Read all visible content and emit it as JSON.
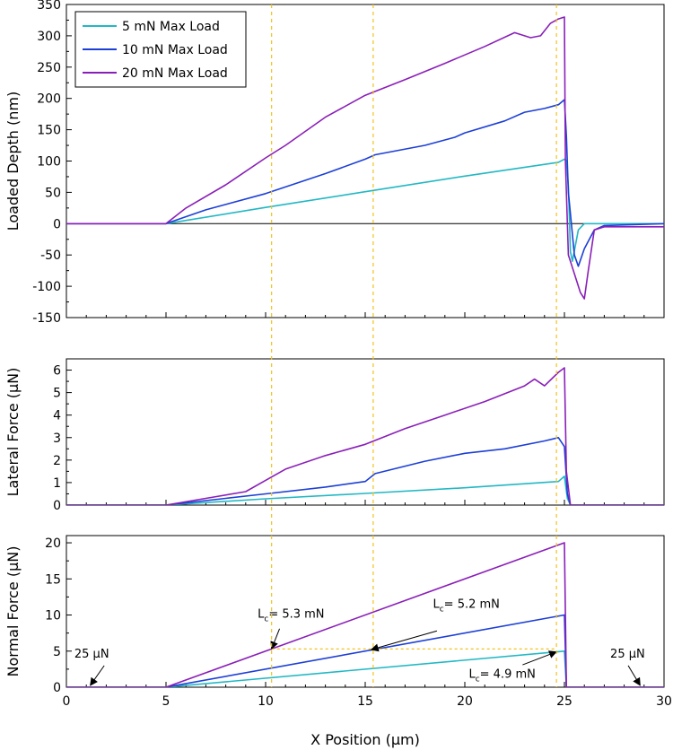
{
  "chart_data": [
    {
      "type": "line",
      "id": "depth",
      "ylabel": "Loaded Depth (nm)",
      "xlim": [
        0,
        30
      ],
      "ylim": [
        -150,
        350
      ],
      "yticks": [
        -150,
        -100,
        -50,
        0,
        50,
        100,
        150,
        200,
        250,
        300,
        350
      ],
      "zero_line": true,
      "legend": {
        "placement": "top-left",
        "entries": [
          "5 mN Max Load",
          "10 mN Max Load",
          "20 mN Max Load"
        ]
      },
      "series": [
        {
          "name": "5 mN Max Load",
          "color": "#22b8c4",
          "x": [
            -1,
            5,
            10,
            15,
            20,
            24.7,
            25.0,
            25.1,
            25.2,
            25.3,
            25.4,
            25.7,
            26,
            30
          ],
          "y": [
            0,
            0,
            26,
            51,
            76,
            98,
            103,
            101,
            60,
            -45,
            -60,
            -10,
            0,
            0
          ]
        },
        {
          "name": "10 mN Max Load",
          "color": "#1c3fd6",
          "x": [
            -1,
            5,
            7,
            10,
            13,
            15,
            15.5,
            18,
            19.5,
            20,
            22,
            23,
            24,
            24.7,
            25.0,
            25.1,
            25.2,
            25.5,
            25.7,
            26.0,
            26.5,
            27,
            30
          ],
          "y": [
            0,
            0,
            22,
            48,
            80,
            103,
            110,
            125,
            138,
            145,
            164,
            178,
            184,
            190,
            198,
            140,
            50,
            -50,
            -68,
            -40,
            -10,
            -3,
            0
          ]
        },
        {
          "name": "20 mN Max Load",
          "color": "#8a1fb8",
          "x": [
            -1,
            5,
            6,
            8,
            10,
            11,
            13,
            15,
            17,
            19,
            21,
            22.5,
            23.3,
            23.8,
            24.3,
            24.7,
            25.0,
            25.05,
            25.2,
            25.5,
            25.8,
            26.0,
            26.2,
            26.5,
            27,
            30
          ],
          "y": [
            0,
            0,
            25,
            62,
            105,
            125,
            170,
            205,
            230,
            256,
            283,
            305,
            297,
            300,
            320,
            327,
            330,
            100,
            -50,
            -80,
            -110,
            -120,
            -75,
            -10,
            -5,
            -5
          ]
        }
      ]
    },
    {
      "type": "line",
      "id": "lateral",
      "ylabel": "Lateral Force (µN)",
      "xlim": [
        0,
        30
      ],
      "ylim": [
        0,
        6.5
      ],
      "yticks": [
        0,
        1,
        2,
        3,
        4,
        5,
        6
      ],
      "series": [
        {
          "name": "5 mN Max Load",
          "color": "#22b8c4",
          "x": [
            -1,
            5,
            10,
            15,
            20,
            24.7,
            25.0,
            25.15,
            25.3,
            30
          ],
          "y": [
            0,
            0,
            0.28,
            0.52,
            0.77,
            1.05,
            1.28,
            0.3,
            0,
            0
          ]
        },
        {
          "name": "10 mN Max Load",
          "color": "#1c3fd6",
          "x": [
            -1,
            5,
            8,
            10,
            13,
            15,
            15.5,
            18,
            20,
            22,
            24,
            24.7,
            25.0,
            25.15,
            25.3,
            30
          ],
          "y": [
            0,
            0,
            0.3,
            0.5,
            0.8,
            1.05,
            1.4,
            1.95,
            2.3,
            2.5,
            2.85,
            3.0,
            2.6,
            0.5,
            0,
            0
          ]
        },
        {
          "name": "20 mN Max Load",
          "color": "#8a1fb8",
          "x": [
            -1,
            5,
            7,
            9,
            10,
            11,
            13,
            15,
            17,
            19,
            21,
            23,
            23.5,
            24,
            24.7,
            25.0,
            25.1,
            25.3,
            30
          ],
          "y": [
            0,
            0,
            0.3,
            0.6,
            1.1,
            1.6,
            2.2,
            2.7,
            3.4,
            4.0,
            4.6,
            5.3,
            5.6,
            5.3,
            5.9,
            6.1,
            1.5,
            0,
            0
          ]
        }
      ]
    },
    {
      "type": "line",
      "id": "normal",
      "ylabel": "Normal Force (µN)",
      "xlabel": "X Position (µm)",
      "xlim": [
        0,
        30
      ],
      "xticks": [
        0,
        5,
        10,
        15,
        20,
        25,
        30
      ],
      "ylim": [
        0,
        21
      ],
      "yticks": [
        0,
        5,
        10,
        15,
        20
      ],
      "series": [
        {
          "name": "5 mN Max Load",
          "color": "#22b8c4",
          "x": [
            -1,
            5,
            25,
            25.1,
            30
          ],
          "y": [
            0,
            0,
            5,
            0,
            0
          ]
        },
        {
          "name": "10 mN Max Load",
          "color": "#1c3fd6",
          "x": [
            -1,
            5,
            25,
            25.1,
            30
          ],
          "y": [
            0,
            0,
            10,
            0,
            0
          ]
        },
        {
          "name": "20 mN Max Load",
          "color": "#8a1fb8",
          "x": [
            -1,
            5,
            25,
            25.1,
            30
          ],
          "y": [
            0,
            0,
            20,
            0,
            0
          ]
        }
      ],
      "annotations": [
        {
          "sub": "c",
          "text": "= 5.3 mN",
          "tip": [
            10.3,
            5.3
          ],
          "tail": [
            10.7,
            8.1
          ],
          "lx": 9.6,
          "ly": 9.6
        },
        {
          "sub": "c",
          "text": "= 5.2 mN",
          "tip": [
            15.3,
            5.2
          ],
          "tail": [
            18.6,
            7.8
          ],
          "lx": 18.4,
          "ly": 11.0
        },
        {
          "sub": "c",
          "text": "= 4.9 mN",
          "tip": [
            24.6,
            4.9
          ],
          "tail": [
            22.9,
            3.1
          ],
          "lx": 20.2,
          "ly": 1.3
        },
        {
          "text": "25 µN",
          "tip": [
            1.2,
            0.25
          ],
          "tail": [
            1.9,
            3.0
          ],
          "lx": 0.4,
          "ly": 4.1
        },
        {
          "text": "25 µN",
          "tip": [
            28.8,
            0.25
          ],
          "tail": [
            28.2,
            3.0
          ],
          "lx": 27.3,
          "ly": 4.1
        }
      ],
      "guide_lines": [
        {
          "x": [
            10.3,
            24.6
          ],
          "y": [
            5.3,
            5.3
          ]
        }
      ]
    }
  ],
  "critical_x": [
    10.3,
    15.4,
    24.6
  ],
  "colors": {
    "guide": "#f2c21b",
    "axis": "#000000"
  }
}
